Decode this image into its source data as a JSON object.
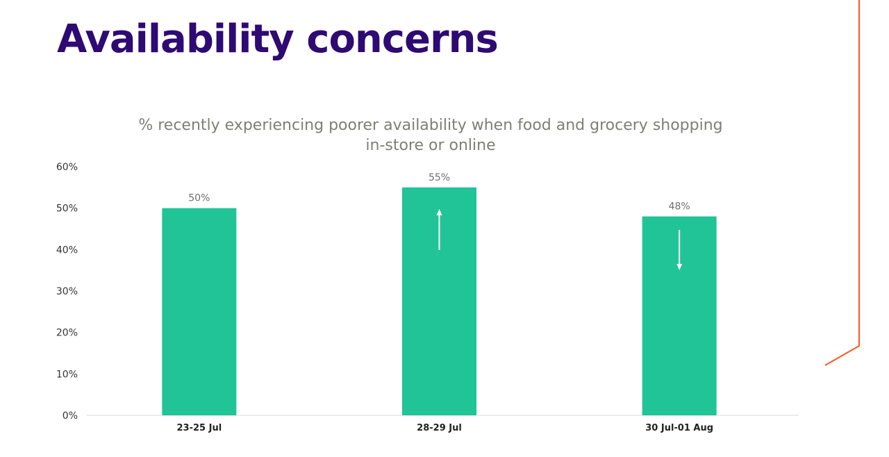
{
  "title": "Availability concerns",
  "colors": {
    "bar": "#20c497",
    "title": "#2e0a73",
    "accent_line": "#ff5323"
  },
  "chart_data": {
    "type": "bar",
    "title": "% recently experiencing poorer availability when food and grocery shopping in-store or online",
    "title_lines": [
      "% recently experiencing poorer availability when food and grocery shopping",
      "in-store or online"
    ],
    "categories": [
      "23-25 Jul",
      "28-29 Jul",
      "30 Jul-01 Aug"
    ],
    "values": [
      50,
      55,
      48
    ],
    "data_labels": [
      "50%",
      "55%",
      "48%"
    ],
    "trend_arrows": [
      "none",
      "up",
      "down"
    ],
    "xlabel": "",
    "ylabel": "",
    "ylim": [
      0,
      60
    ],
    "yticks": [
      "0%",
      "10%",
      "20%",
      "30%",
      "40%",
      "50%",
      "60%"
    ],
    "grid": false,
    "legend": "none"
  }
}
